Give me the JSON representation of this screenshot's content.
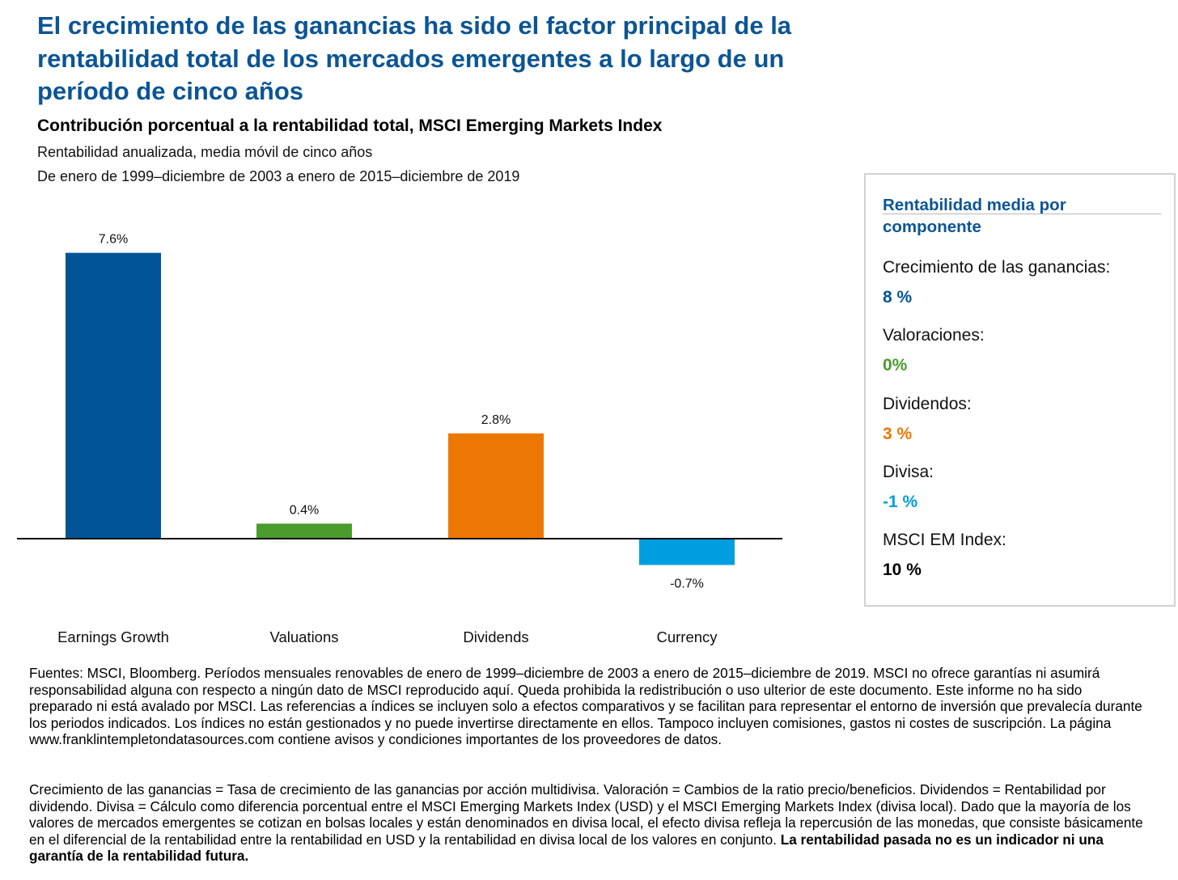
{
  "header": {
    "title": "El crecimiento de las ganancias ha sido el factor principal de la rentabilidad total de los mercados emergentes a lo largo de un período de cinco años",
    "subtitle": "Contribución porcentual a la rentabilidad total, MSCI Emerging Markets Index",
    "description_1": "Rentabilidad anualizada, media móvil de cinco años",
    "description_2": "De enero de 1999–diciembre de 2003 a enero de 2015–diciembre de 2019"
  },
  "chart_data": {
    "type": "bar",
    "categories": [
      "Earnings Growth",
      "Valuations",
      "Dividends",
      "Currency"
    ],
    "values": [
      7.6,
      0.4,
      2.8,
      -0.7
    ],
    "data_labels": [
      "7.6%",
      "0.4%",
      "2.8%",
      "-0.7%"
    ],
    "colors": [
      "#005596",
      "#4a9c2d",
      "#ed7703",
      "#009ee0"
    ],
    "title": "",
    "xlabel": "",
    "ylabel": "",
    "ylim": [
      -1.5,
      8.5
    ],
    "grid": false
  },
  "sidebar": {
    "heading": "Rentabilidad media por componente",
    "items": [
      {
        "label": "Crecimiento de las ganancias:",
        "value": "8 %",
        "color": "#005596"
      },
      {
        "label": "Valoraciones:",
        "value": "0%",
        "color": "#4a9c2d"
      },
      {
        "label": "Dividendos:",
        "value": "3 %",
        "color": "#ed7703"
      },
      {
        "label": "Divisa:",
        "value": "-1 %",
        "color": "#009ee0"
      },
      {
        "label": "MSCI EM Index:",
        "value": "10 %",
        "color": "#000000"
      }
    ]
  },
  "footnotes": {
    "sources": "Fuentes: MSCI, Bloomberg. Períodos mensuales renovables de enero de 1999–diciembre de 2003 a enero de 2015–diciembre de 2019. MSCI no ofrece garantías ni asumirá responsabilidad alguna con respecto a ningún dato de MSCI reproducido aquí. Queda prohibida la redistribución o uso ulterior de este documento. Este informe no ha sido preparado ni está avalado por MSCI. Las referencias a índices se incluyen solo a efectos comparativos y se facilitan para representar el entorno de inversión que prevalecía durante los periodos indicados. Los índices no están gestionados y no puede invertirse directamente en ellos. Tampoco incluyen comisiones, gastos ni costes de suscripción. La página www.franklintempletondatasources.com contiene avisos y condiciones importantes de los proveedores de datos.",
    "definitions": "Crecimiento de las ganancias = Tasa de crecimiento de las ganancias por acción multidivisa. Valoración = Cambios de la ratio precio/beneficios. Dividendos = Rentabilidad por dividendo. Divisa = Cálculo como diferencia porcentual entre el MSCI Emerging Markets Index (USD) y el MSCI Emerging Markets Index (divisa local). Dado que la mayoría de los valores de mercados emergentes se cotizan en bolsas locales y están denominados en divisa local, el efecto divisa refleja la repercusión de las monedas, que consiste básicamente en el diferencial de la rentabilidad entre la rentabilidad en USD y la rentabilidad en divisa local de los valores en conjunto.",
    "disclaimer": "La rentabilidad pasada no es un indicador ni una garantía de la rentabilidad futura."
  }
}
